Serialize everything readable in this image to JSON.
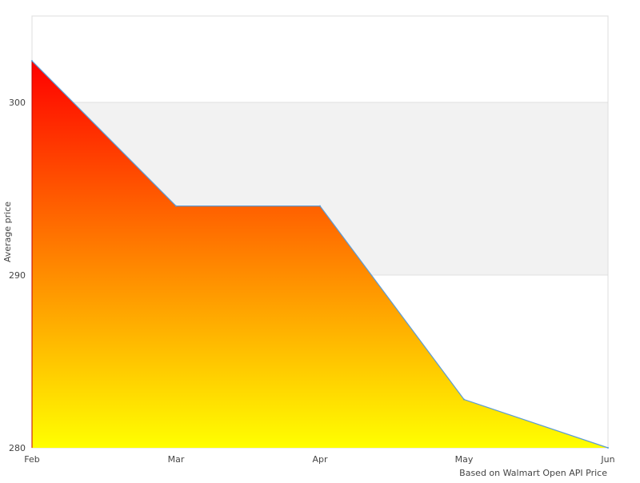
{
  "chart_data": {
    "type": "area",
    "title": "",
    "xlabel": "Based on Walmart Open API Price",
    "ylabel": "Average price",
    "categories": [
      "Feb",
      "Mar",
      "Apr",
      "May",
      "Jun"
    ],
    "series": [
      {
        "values": [
          302.4,
          294.0,
          294.0,
          282.8,
          280.0
        ]
      }
    ],
    "ylim": [
      280,
      305
    ],
    "yticks": [
      280,
      290,
      300
    ],
    "grid": "alternating horizontal bands",
    "legend": "none",
    "colors": {
      "gradient_top": "#ff0000",
      "gradient_bottom": "#ffff00",
      "line": "#5b9bd5",
      "band": "#f2f2f2",
      "border": "#dddddd"
    }
  }
}
